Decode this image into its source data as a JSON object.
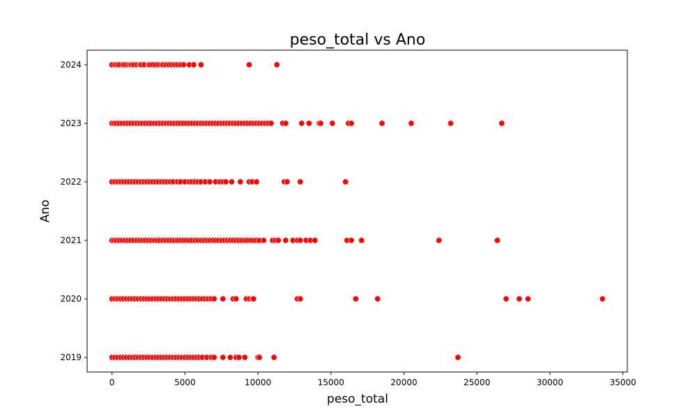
{
  "chart_data": {
    "type": "scatter",
    "title": "peso_total vs Ano",
    "xlabel": "peso_total",
    "ylabel": "Ano",
    "xlim": [
      -1700,
      35300
    ],
    "ylim": [
      2018.75,
      2024.25
    ],
    "xticks": [
      0,
      5000,
      10000,
      15000,
      20000,
      25000,
      30000,
      35000
    ],
    "yticks": [
      2019,
      2020,
      2021,
      2022,
      2023,
      2024
    ],
    "grid": false,
    "legend": "none",
    "marker_color": "#ff0000",
    "marker_edge_color": "#ffffff",
    "series": [
      {
        "points": [
          [
            0,
            2024
          ],
          [
            200,
            2024
          ],
          [
            350,
            2024
          ],
          [
            500,
            2024
          ],
          [
            750,
            2024
          ],
          [
            900,
            2024
          ],
          [
            1100,
            2024
          ],
          [
            1250,
            2024
          ],
          [
            1350,
            2024
          ],
          [
            1500,
            2024
          ],
          [
            1700,
            2024
          ],
          [
            1900,
            2024
          ],
          [
            2000,
            2024
          ],
          [
            2200,
            2024
          ],
          [
            2500,
            2024
          ],
          [
            2600,
            2024
          ],
          [
            2800,
            2024
          ],
          [
            3000,
            2024
          ],
          [
            3200,
            2024
          ],
          [
            3400,
            2024
          ],
          [
            3500,
            2024
          ],
          [
            3700,
            2024
          ],
          [
            3900,
            2024
          ],
          [
            4100,
            2024
          ],
          [
            4300,
            2024
          ],
          [
            4500,
            2024
          ],
          [
            4700,
            2024
          ],
          [
            4900,
            2024
          ],
          [
            5300,
            2024
          ],
          [
            5600,
            2024
          ],
          [
            6100,
            2024
          ],
          [
            9400,
            2024
          ],
          [
            11300,
            2024
          ],
          [
            0,
            2023
          ],
          [
            150,
            2023
          ],
          [
            300,
            2023
          ],
          [
            500,
            2023
          ],
          [
            700,
            2023
          ],
          [
            900,
            2023
          ],
          [
            1100,
            2023
          ],
          [
            1300,
            2023
          ],
          [
            1500,
            2023
          ],
          [
            1700,
            2023
          ],
          [
            1900,
            2023
          ],
          [
            2100,
            2023
          ],
          [
            2300,
            2023
          ],
          [
            2500,
            2023
          ],
          [
            2700,
            2023
          ],
          [
            2900,
            2023
          ],
          [
            3100,
            2023
          ],
          [
            3300,
            2023
          ],
          [
            3500,
            2023
          ],
          [
            3700,
            2023
          ],
          [
            3900,
            2023
          ],
          [
            4100,
            2023
          ],
          [
            4300,
            2023
          ],
          [
            4500,
            2023
          ],
          [
            4700,
            2023
          ],
          [
            4900,
            2023
          ],
          [
            5100,
            2023
          ],
          [
            5300,
            2023
          ],
          [
            5500,
            2023
          ],
          [
            5700,
            2023
          ],
          [
            5900,
            2023
          ],
          [
            6100,
            2023
          ],
          [
            6300,
            2023
          ],
          [
            6500,
            2023
          ],
          [
            6700,
            2023
          ],
          [
            6900,
            2023
          ],
          [
            7100,
            2023
          ],
          [
            7300,
            2023
          ],
          [
            7500,
            2023
          ],
          [
            7700,
            2023
          ],
          [
            7900,
            2023
          ],
          [
            8100,
            2023
          ],
          [
            8300,
            2023
          ],
          [
            8500,
            2023
          ],
          [
            8700,
            2023
          ],
          [
            8900,
            2023
          ],
          [
            9100,
            2023
          ],
          [
            9300,
            2023
          ],
          [
            9500,
            2023
          ],
          [
            9700,
            2023
          ],
          [
            9900,
            2023
          ],
          [
            10100,
            2023
          ],
          [
            10300,
            2023
          ],
          [
            10500,
            2023
          ],
          [
            10700,
            2023
          ],
          [
            10900,
            2023
          ],
          [
            11700,
            2023
          ],
          [
            11900,
            2023
          ],
          [
            13000,
            2023
          ],
          [
            13500,
            2023
          ],
          [
            14200,
            2023
          ],
          [
            14300,
            2023
          ],
          [
            15100,
            2023
          ],
          [
            16200,
            2023
          ],
          [
            16400,
            2023
          ],
          [
            18500,
            2023
          ],
          [
            20500,
            2023
          ],
          [
            23200,
            2023
          ],
          [
            26700,
            2023
          ],
          [
            0,
            2022
          ],
          [
            200,
            2022
          ],
          [
            400,
            2022
          ],
          [
            600,
            2022
          ],
          [
            800,
            2022
          ],
          [
            1000,
            2022
          ],
          [
            1200,
            2022
          ],
          [
            1400,
            2022
          ],
          [
            1600,
            2022
          ],
          [
            1800,
            2022
          ],
          [
            2000,
            2022
          ],
          [
            2200,
            2022
          ],
          [
            2400,
            2022
          ],
          [
            2600,
            2022
          ],
          [
            2800,
            2022
          ],
          [
            3000,
            2022
          ],
          [
            3200,
            2022
          ],
          [
            3400,
            2022
          ],
          [
            3600,
            2022
          ],
          [
            3800,
            2022
          ],
          [
            4000,
            2022
          ],
          [
            4200,
            2022
          ],
          [
            4500,
            2022
          ],
          [
            4700,
            2022
          ],
          [
            5000,
            2022
          ],
          [
            5300,
            2022
          ],
          [
            5500,
            2022
          ],
          [
            5700,
            2022
          ],
          [
            5900,
            2022
          ],
          [
            6100,
            2022
          ],
          [
            6400,
            2022
          ],
          [
            6700,
            2022
          ],
          [
            7100,
            2022
          ],
          [
            7400,
            2022
          ],
          [
            7600,
            2022
          ],
          [
            7800,
            2022
          ],
          [
            8200,
            2022
          ],
          [
            8800,
            2022
          ],
          [
            9400,
            2022
          ],
          [
            9600,
            2022
          ],
          [
            9900,
            2022
          ],
          [
            11800,
            2022
          ],
          [
            12000,
            2022
          ],
          [
            12900,
            2022
          ],
          [
            16000,
            2022
          ],
          [
            0,
            2021
          ],
          [
            150,
            2021
          ],
          [
            300,
            2021
          ],
          [
            500,
            2021
          ],
          [
            700,
            2021
          ],
          [
            900,
            2021
          ],
          [
            1100,
            2021
          ],
          [
            1300,
            2021
          ],
          [
            1500,
            2021
          ],
          [
            1700,
            2021
          ],
          [
            1900,
            2021
          ],
          [
            2100,
            2021
          ],
          [
            2300,
            2021
          ],
          [
            2500,
            2021
          ],
          [
            2700,
            2021
          ],
          [
            2900,
            2021
          ],
          [
            3100,
            2021
          ],
          [
            3300,
            2021
          ],
          [
            3500,
            2021
          ],
          [
            3700,
            2021
          ],
          [
            3900,
            2021
          ],
          [
            4100,
            2021
          ],
          [
            4300,
            2021
          ],
          [
            4500,
            2021
          ],
          [
            4700,
            2021
          ],
          [
            4900,
            2021
          ],
          [
            5100,
            2021
          ],
          [
            5300,
            2021
          ],
          [
            5500,
            2021
          ],
          [
            5700,
            2021
          ],
          [
            5900,
            2021
          ],
          [
            6100,
            2021
          ],
          [
            6300,
            2021
          ],
          [
            6500,
            2021
          ],
          [
            6700,
            2021
          ],
          [
            6900,
            2021
          ],
          [
            7100,
            2021
          ],
          [
            7300,
            2021
          ],
          [
            7500,
            2021
          ],
          [
            7700,
            2021
          ],
          [
            7900,
            2021
          ],
          [
            8100,
            2021
          ],
          [
            8300,
            2021
          ],
          [
            8500,
            2021
          ],
          [
            8700,
            2021
          ],
          [
            8900,
            2021
          ],
          [
            9100,
            2021
          ],
          [
            9300,
            2021
          ],
          [
            9500,
            2021
          ],
          [
            9700,
            2021
          ],
          [
            9900,
            2021
          ],
          [
            10100,
            2021
          ],
          [
            10400,
            2021
          ],
          [
            11000,
            2021
          ],
          [
            11200,
            2021
          ],
          [
            11400,
            2021
          ],
          [
            11900,
            2021
          ],
          [
            12400,
            2021
          ],
          [
            12700,
            2021
          ],
          [
            12900,
            2021
          ],
          [
            13300,
            2021
          ],
          [
            13600,
            2021
          ],
          [
            13900,
            2021
          ],
          [
            16100,
            2021
          ],
          [
            16400,
            2021
          ],
          [
            17100,
            2021
          ],
          [
            22400,
            2021
          ],
          [
            26400,
            2021
          ],
          [
            0,
            2020
          ],
          [
            200,
            2020
          ],
          [
            400,
            2020
          ],
          [
            600,
            2020
          ],
          [
            800,
            2020
          ],
          [
            1000,
            2020
          ],
          [
            1200,
            2020
          ],
          [
            1400,
            2020
          ],
          [
            1600,
            2020
          ],
          [
            1800,
            2020
          ],
          [
            2000,
            2020
          ],
          [
            2200,
            2020
          ],
          [
            2400,
            2020
          ],
          [
            2600,
            2020
          ],
          [
            2800,
            2020
          ],
          [
            3000,
            2020
          ],
          [
            3200,
            2020
          ],
          [
            3400,
            2020
          ],
          [
            3600,
            2020
          ],
          [
            3800,
            2020
          ],
          [
            4000,
            2020
          ],
          [
            4200,
            2020
          ],
          [
            4400,
            2020
          ],
          [
            4600,
            2020
          ],
          [
            4800,
            2020
          ],
          [
            5000,
            2020
          ],
          [
            5200,
            2020
          ],
          [
            5400,
            2020
          ],
          [
            5600,
            2020
          ],
          [
            5800,
            2020
          ],
          [
            6000,
            2020
          ],
          [
            6200,
            2020
          ],
          [
            6400,
            2020
          ],
          [
            6600,
            2020
          ],
          [
            6800,
            2020
          ],
          [
            7000,
            2020
          ],
          [
            7600,
            2020
          ],
          [
            8300,
            2020
          ],
          [
            8500,
            2020
          ],
          [
            9200,
            2020
          ],
          [
            9400,
            2020
          ],
          [
            9600,
            2020
          ],
          [
            9700,
            2020
          ],
          [
            12700,
            2020
          ],
          [
            12900,
            2020
          ],
          [
            16700,
            2020
          ],
          [
            18200,
            2020
          ],
          [
            27000,
            2020
          ],
          [
            27900,
            2020
          ],
          [
            28500,
            2020
          ],
          [
            33600,
            2020
          ],
          [
            0,
            2019
          ],
          [
            200,
            2019
          ],
          [
            400,
            2019
          ],
          [
            600,
            2019
          ],
          [
            800,
            2019
          ],
          [
            1000,
            2019
          ],
          [
            1200,
            2019
          ],
          [
            1400,
            2019
          ],
          [
            1600,
            2019
          ],
          [
            1800,
            2019
          ],
          [
            2000,
            2019
          ],
          [
            2200,
            2019
          ],
          [
            2400,
            2019
          ],
          [
            2600,
            2019
          ],
          [
            2800,
            2019
          ],
          [
            3000,
            2019
          ],
          [
            3200,
            2019
          ],
          [
            3400,
            2019
          ],
          [
            3600,
            2019
          ],
          [
            3800,
            2019
          ],
          [
            4000,
            2019
          ],
          [
            4200,
            2019
          ],
          [
            4400,
            2019
          ],
          [
            4600,
            2019
          ],
          [
            4800,
            2019
          ],
          [
            5000,
            2019
          ],
          [
            5200,
            2019
          ],
          [
            5400,
            2019
          ],
          [
            5600,
            2019
          ],
          [
            5800,
            2019
          ],
          [
            6000,
            2019
          ],
          [
            6200,
            2019
          ],
          [
            6500,
            2019
          ],
          [
            6800,
            2019
          ],
          [
            7000,
            2019
          ],
          [
            7600,
            2019
          ],
          [
            8100,
            2019
          ],
          [
            8500,
            2019
          ],
          [
            8700,
            2019
          ],
          [
            9100,
            2019
          ],
          [
            10000,
            2019
          ],
          [
            10100,
            2019
          ],
          [
            11100,
            2019
          ],
          [
            23700,
            2019
          ]
        ]
      }
    ]
  }
}
